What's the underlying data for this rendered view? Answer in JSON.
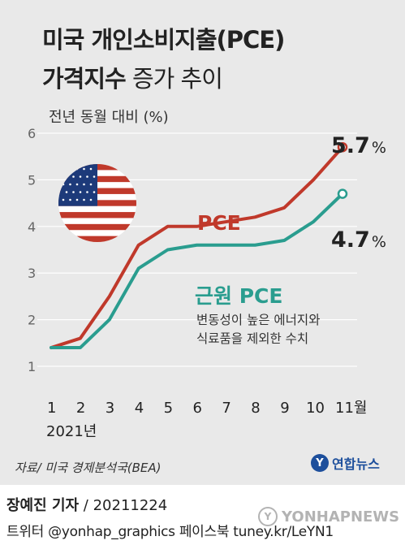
{
  "header": {
    "title_line1": "미국 개인소비지출(PCE)",
    "title_line2_bold": "가격지수",
    "title_line2_light": " 증가 추이",
    "unit_label": "전년 동월 대비 (%)"
  },
  "chart_data": {
    "type": "line",
    "title": "미국 개인소비지출(PCE) 가격지수 증가 추이",
    "ylabel": "전년 동월 대비 (%)",
    "xlabel": "2021년",
    "x": [
      "1",
      "2",
      "3",
      "4",
      "5",
      "6",
      "7",
      "8",
      "9",
      "10",
      "11월"
    ],
    "ylim": [
      1,
      6
    ],
    "yticks": [
      "1",
      "2",
      "3",
      "4",
      "5",
      "6"
    ],
    "grid": true,
    "series": [
      {
        "name": "PCE",
        "color": "#c0392b",
        "values": [
          1.4,
          1.6,
          2.5,
          3.6,
          4.0,
          4.0,
          4.1,
          4.2,
          4.4,
          5.0,
          5.7
        ],
        "end_label": "5.7",
        "end_unit": "%"
      },
      {
        "name": "근원 PCE",
        "color": "#2a9d8f",
        "values": [
          1.4,
          1.4,
          2.0,
          3.1,
          3.5,
          3.6,
          3.6,
          3.6,
          3.7,
          4.1,
          4.7
        ],
        "end_label": "4.7",
        "end_unit": "%"
      }
    ],
    "annotation_lines": [
      "변동성이 높은 에너지와",
      "식료품을 제외한 수치"
    ],
    "year_label": "2021년"
  },
  "footer": {
    "source": "자료/ 미국 경제분석국(BEA)",
    "logo_mark": "Y",
    "logo_text": "연합뉴스",
    "byline_name": "장예진 기자",
    "byline_date": " / 20211224",
    "social": "트위터 @yonhap_graphics  페이스북 tuney.kr/LeYN1",
    "watermark": "YONHAPNEWS"
  },
  "colors": {
    "background": "#e9e9e9",
    "pce": "#c0392b",
    "core_pce": "#2a9d8f",
    "flag_red": "#c0392b",
    "flag_blue": "#1d3a7a"
  }
}
